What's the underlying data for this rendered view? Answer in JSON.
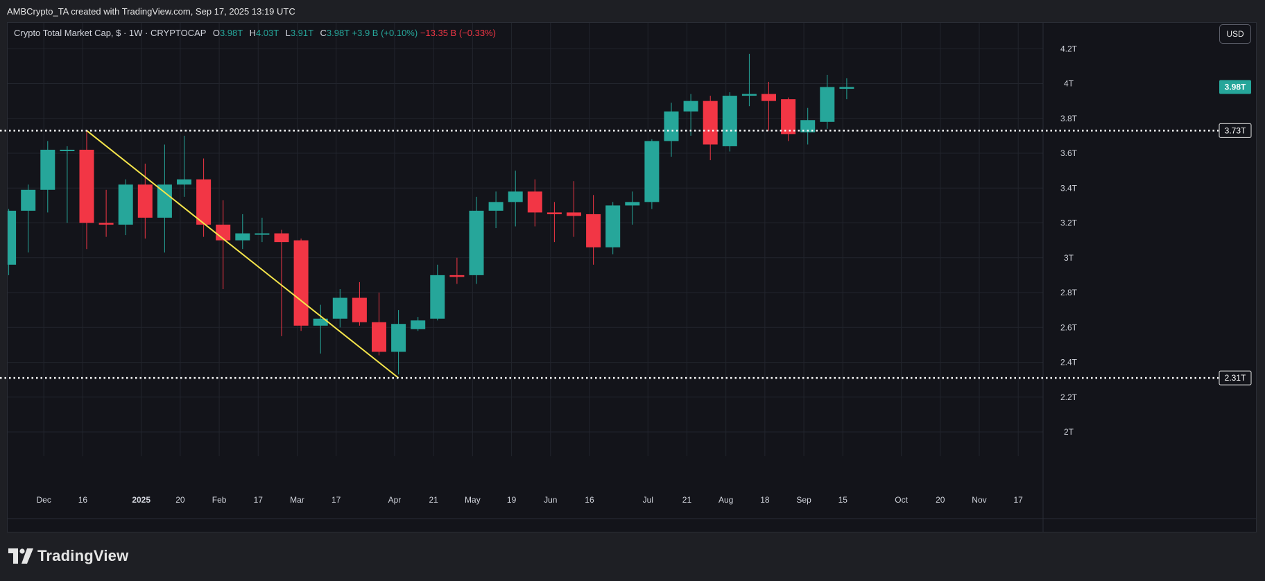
{
  "attribution": "AMBCrypto_TA created with TradingView.com, Sep 17, 2025 13:19 UTC",
  "legend": {
    "title": "Crypto Total Market Cap, $ · 1W · CRYPTOCAP",
    "o_label": "O",
    "o_value": "3.98T",
    "h_label": "H",
    "h_value": "4.03T",
    "l_label": "L",
    "l_value": "3.91T",
    "c_label": "C",
    "c_value": "3.98T",
    "change_up": "+3.9 B (+0.10%)",
    "change_down": "−13.35 B (−0.33%)"
  },
  "currency_button": "USD",
  "brand": "TradingView",
  "colors": {
    "up": "#26a69a",
    "down": "#f23645",
    "trendline": "#f5e54b",
    "level_line": "#ffffff",
    "background": "#13141a"
  },
  "chart_data": {
    "type": "candlestick",
    "interval": "1W",
    "ylim": [
      1.95,
      4.25
    ],
    "y_ticks": [
      2,
      2.2,
      2.4,
      2.6,
      2.8,
      3,
      3.2,
      3.4,
      3.6,
      3.8,
      4,
      4.2
    ],
    "y_tick_labels": [
      "2T",
      "2.2T",
      "2.4T",
      "2.6T",
      "2.8T",
      "3T",
      "3.2T",
      "3.4T",
      "3.6T",
      "3.8T",
      "4T",
      "4.2T"
    ],
    "x_ticks": [
      {
        "label": "Dec",
        "bar": 1.8
      },
      {
        "label": "16",
        "bar": 3.8
      },
      {
        "label": "2025",
        "bar": 6.8,
        "bold": true
      },
      {
        "label": "20",
        "bar": 8.8
      },
      {
        "label": "Feb",
        "bar": 10.8
      },
      {
        "label": "17",
        "bar": 12.8
      },
      {
        "label": "Mar",
        "bar": 14.8
      },
      {
        "label": "17",
        "bar": 16.8
      },
      {
        "label": "Apr",
        "bar": 19.8
      },
      {
        "label": "21",
        "bar": 21.8
      },
      {
        "label": "May",
        "bar": 23.8
      },
      {
        "label": "19",
        "bar": 25.8
      },
      {
        "label": "Jun",
        "bar": 27.8
      },
      {
        "label": "16",
        "bar": 29.8
      },
      {
        "label": "Jul",
        "bar": 32.8
      },
      {
        "label": "21",
        "bar": 34.8
      },
      {
        "label": "Aug",
        "bar": 36.8
      },
      {
        "label": "18",
        "bar": 38.8
      },
      {
        "label": "Sep",
        "bar": 40.8
      },
      {
        "label": "15",
        "bar": 42.8
      },
      {
        "label": "Oct",
        "bar": 45.8
      },
      {
        "label": "20",
        "bar": 47.8
      },
      {
        "label": "Nov",
        "bar": 49.8
      },
      {
        "label": "17",
        "bar": 51.8
      }
    ],
    "candles": [
      {
        "o": 2.96,
        "h": 3.28,
        "l": 2.9,
        "c": 3.27
      },
      {
        "o": 3.27,
        "h": 3.42,
        "l": 3.03,
        "c": 3.39
      },
      {
        "o": 3.39,
        "h": 3.67,
        "l": 3.26,
        "c": 3.62
      },
      {
        "o": 3.62,
        "h": 3.64,
        "l": 3.2,
        "c": 3.62
      },
      {
        "o": 3.62,
        "h": 3.73,
        "l": 3.05,
        "c": 3.2
      },
      {
        "o": 3.2,
        "h": 3.39,
        "l": 3.12,
        "c": 3.19
      },
      {
        "o": 3.19,
        "h": 3.45,
        "l": 3.13,
        "c": 3.42
      },
      {
        "o": 3.42,
        "h": 3.54,
        "l": 3.11,
        "c": 3.23
      },
      {
        "o": 3.23,
        "h": 3.65,
        "l": 3.03,
        "c": 3.42
      },
      {
        "o": 3.42,
        "h": 3.7,
        "l": 3.35,
        "c": 3.45
      },
      {
        "o": 3.45,
        "h": 3.57,
        "l": 3.12,
        "c": 3.19
      },
      {
        "o": 3.19,
        "h": 3.33,
        "l": 2.82,
        "c": 3.1
      },
      {
        "o": 3.1,
        "h": 3.25,
        "l": 3.05,
        "c": 3.14
      },
      {
        "o": 3.14,
        "h": 3.23,
        "l": 3.09,
        "c": 3.14
      },
      {
        "o": 3.14,
        "h": 3.16,
        "l": 2.55,
        "c": 3.09
      },
      {
        "o": 3.1,
        "h": 3.11,
        "l": 2.58,
        "c": 2.61
      },
      {
        "o": 2.61,
        "h": 2.73,
        "l": 2.45,
        "c": 2.65
      },
      {
        "o": 2.65,
        "h": 2.82,
        "l": 2.6,
        "c": 2.77
      },
      {
        "o": 2.77,
        "h": 2.86,
        "l": 2.61,
        "c": 2.63
      },
      {
        "o": 2.63,
        "h": 2.8,
        "l": 2.44,
        "c": 2.46
      },
      {
        "o": 2.46,
        "h": 2.7,
        "l": 2.33,
        "c": 2.62
      },
      {
        "o": 2.59,
        "h": 2.66,
        "l": 2.58,
        "c": 2.64
      },
      {
        "o": 2.65,
        "h": 2.96,
        "l": 2.64,
        "c": 2.9
      },
      {
        "o": 2.9,
        "h": 3.0,
        "l": 2.85,
        "c": 2.89
      },
      {
        "o": 2.9,
        "h": 3.35,
        "l": 2.85,
        "c": 3.27
      },
      {
        "o": 3.27,
        "h": 3.38,
        "l": 3.17,
        "c": 3.32
      },
      {
        "o": 3.32,
        "h": 3.5,
        "l": 3.18,
        "c": 3.38
      },
      {
        "o": 3.38,
        "h": 3.45,
        "l": 3.18,
        "c": 3.26
      },
      {
        "o": 3.26,
        "h": 3.32,
        "l": 3.09,
        "c": 3.25
      },
      {
        "o": 3.26,
        "h": 3.44,
        "l": 3.12,
        "c": 3.24
      },
      {
        "o": 3.25,
        "h": 3.36,
        "l": 2.96,
        "c": 3.06
      },
      {
        "o": 3.06,
        "h": 3.32,
        "l": 3.02,
        "c": 3.3
      },
      {
        "o": 3.3,
        "h": 3.38,
        "l": 3.19,
        "c": 3.32
      },
      {
        "o": 3.32,
        "h": 3.68,
        "l": 3.28,
        "c": 3.67
      },
      {
        "o": 3.67,
        "h": 3.89,
        "l": 3.58,
        "c": 3.84
      },
      {
        "o": 3.84,
        "h": 3.94,
        "l": 3.7,
        "c": 3.9
      },
      {
        "o": 3.9,
        "h": 3.93,
        "l": 3.56,
        "c": 3.65
      },
      {
        "o": 3.64,
        "h": 3.95,
        "l": 3.61,
        "c": 3.93
      },
      {
        "o": 3.93,
        "h": 4.17,
        "l": 3.87,
        "c": 3.94
      },
      {
        "o": 3.94,
        "h": 4.01,
        "l": 3.73,
        "c": 3.9
      },
      {
        "o": 3.91,
        "h": 3.92,
        "l": 3.67,
        "c": 3.71
      },
      {
        "o": 3.72,
        "h": 3.86,
        "l": 3.65,
        "c": 3.79
      },
      {
        "o": 3.78,
        "h": 4.05,
        "l": 3.74,
        "c": 3.98
      },
      {
        "o": 3.97,
        "h": 4.03,
        "l": 3.91,
        "c": 3.98
      }
    ],
    "levels": [
      {
        "value": 3.73,
        "label": "3.73T"
      },
      {
        "value": 2.31,
        "label": "2.31T"
      }
    ],
    "trendline": {
      "from": {
        "bar": 4,
        "value": 3.73
      },
      "to": {
        "bar": 20,
        "value": 2.31
      }
    },
    "last_price": {
      "value": 3.98,
      "label": "3.98T"
    }
  }
}
